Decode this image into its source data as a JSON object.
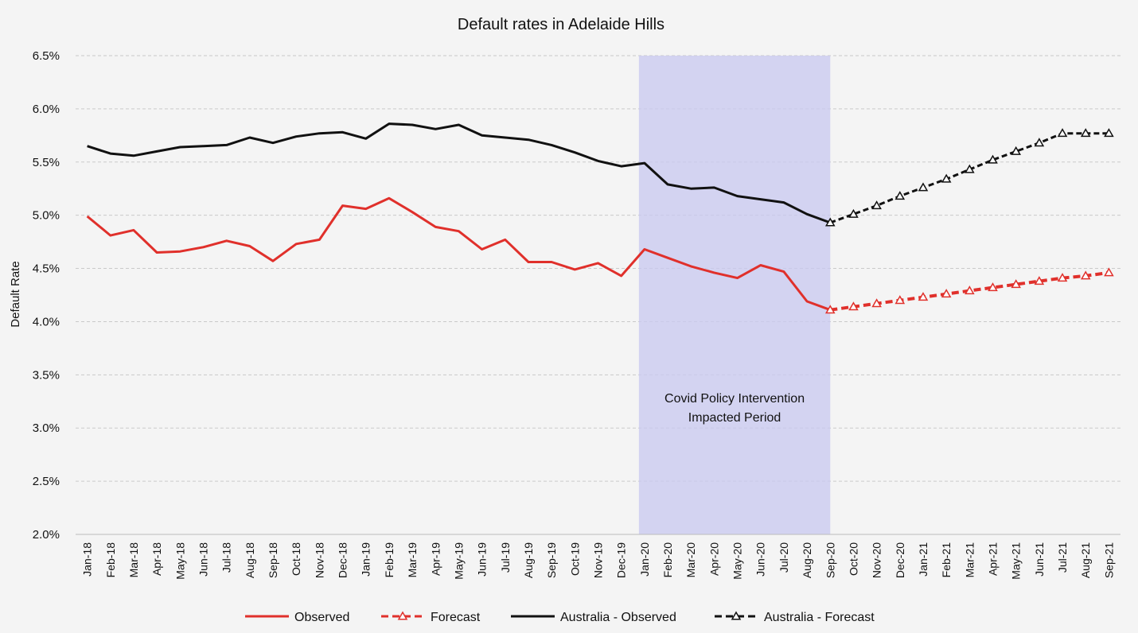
{
  "chart_data": {
    "type": "line",
    "title": "Default rates in Adelaide Hills",
    "xlabel": "",
    "ylabel": "Default Rate",
    "ylim": [
      0.02,
      0.065
    ],
    "yticks": [
      0.02,
      0.025,
      0.03,
      0.035,
      0.04,
      0.045,
      0.05,
      0.055,
      0.06,
      0.065
    ],
    "ytick_labels": [
      "2.0%",
      "2.5%",
      "3.0%",
      "3.5%",
      "4.0%",
      "4.5%",
      "5.0%",
      "5.5%",
      "6.0%",
      "6.5%"
    ],
    "grid": true,
    "legend_position": "bottom",
    "categories": [
      "Jan-18",
      "Feb-18",
      "Mar-18",
      "Apr-18",
      "May-18",
      "Jun-18",
      "Jul-18",
      "Aug-18",
      "Sep-18",
      "Oct-18",
      "Nov-18",
      "Dec-18",
      "Jan-19",
      "Feb-19",
      "Mar-19",
      "Apr-19",
      "May-19",
      "Jun-19",
      "Jul-19",
      "Aug-19",
      "Sep-19",
      "Oct-19",
      "Nov-19",
      "Dec-19",
      "Jan-20",
      "Feb-20",
      "Mar-20",
      "Apr-20",
      "May-20",
      "Jun-20",
      "Jul-20",
      "Aug-20",
      "Sep-20",
      "Oct-20",
      "Nov-20",
      "Dec-20",
      "Jan-21",
      "Feb-21",
      "Mar-21",
      "Apr-21",
      "May-21",
      "Jun-21",
      "Jul-21",
      "Aug-21",
      "Sep-21"
    ],
    "series": [
      {
        "name": "Observed",
        "color": "#e0302b",
        "style": "solid",
        "marker": "none",
        "values": [
          0.0499,
          0.0481,
          0.0486,
          0.0465,
          0.0466,
          0.047,
          0.0476,
          0.0471,
          0.0457,
          0.0473,
          0.0477,
          0.0509,
          0.0506,
          0.0516,
          0.0503,
          0.0489,
          0.0485,
          0.0468,
          0.0477,
          0.0456,
          0.0456,
          0.0449,
          0.0455,
          0.0443,
          0.0468,
          0.046,
          0.0452,
          0.0446,
          0.0441,
          0.0453,
          0.0447,
          0.0419,
          0.0411,
          null,
          null,
          null,
          null,
          null,
          null,
          null,
          null,
          null,
          null,
          null,
          null
        ]
      },
      {
        "name": "Forecast",
        "color": "#e0302b",
        "style": "dashed",
        "marker": "triangle",
        "values": [
          null,
          null,
          null,
          null,
          null,
          null,
          null,
          null,
          null,
          null,
          null,
          null,
          null,
          null,
          null,
          null,
          null,
          null,
          null,
          null,
          null,
          null,
          null,
          null,
          null,
          null,
          null,
          null,
          null,
          null,
          null,
          null,
          0.0411,
          0.0414,
          0.0417,
          0.042,
          0.0423,
          0.0426,
          0.0429,
          0.0432,
          0.0435,
          0.0438,
          0.0441,
          0.0443,
          0.0446
        ]
      },
      {
        "name": "Australia - Observed",
        "color": "#111111",
        "style": "solid",
        "marker": "none",
        "values": [
          0.0565,
          0.0558,
          0.0556,
          0.056,
          0.0564,
          0.0565,
          0.0566,
          0.0573,
          0.0568,
          0.0574,
          0.0577,
          0.0578,
          0.0572,
          0.0586,
          0.0585,
          0.0581,
          0.0585,
          0.0575,
          0.0573,
          0.0571,
          0.0566,
          0.0559,
          0.0551,
          0.0546,
          0.0549,
          0.0529,
          0.0525,
          0.0526,
          0.0518,
          0.0515,
          0.0512,
          0.0501,
          0.0493,
          null,
          null,
          null,
          null,
          null,
          null,
          null,
          null,
          null,
          null,
          null,
          null
        ]
      },
      {
        "name": "Australia - Forecast",
        "color": "#111111",
        "style": "dashed",
        "marker": "triangle",
        "values": [
          null,
          null,
          null,
          null,
          null,
          null,
          null,
          null,
          null,
          null,
          null,
          null,
          null,
          null,
          null,
          null,
          null,
          null,
          null,
          null,
          null,
          null,
          null,
          null,
          null,
          null,
          null,
          null,
          null,
          null,
          null,
          null,
          0.0493,
          0.0501,
          0.0509,
          0.0518,
          0.0526,
          0.0534,
          0.0543,
          0.0552,
          0.056,
          0.0568,
          0.0577,
          0.0577,
          0.0577
        ]
      }
    ],
    "shaded_region": {
      "from": "Jan-20",
      "to": "Sep-20",
      "color": "#c8c8f0",
      "label_lines": [
        "Covid Policy Intervention",
        "Impacted Period"
      ]
    }
  }
}
